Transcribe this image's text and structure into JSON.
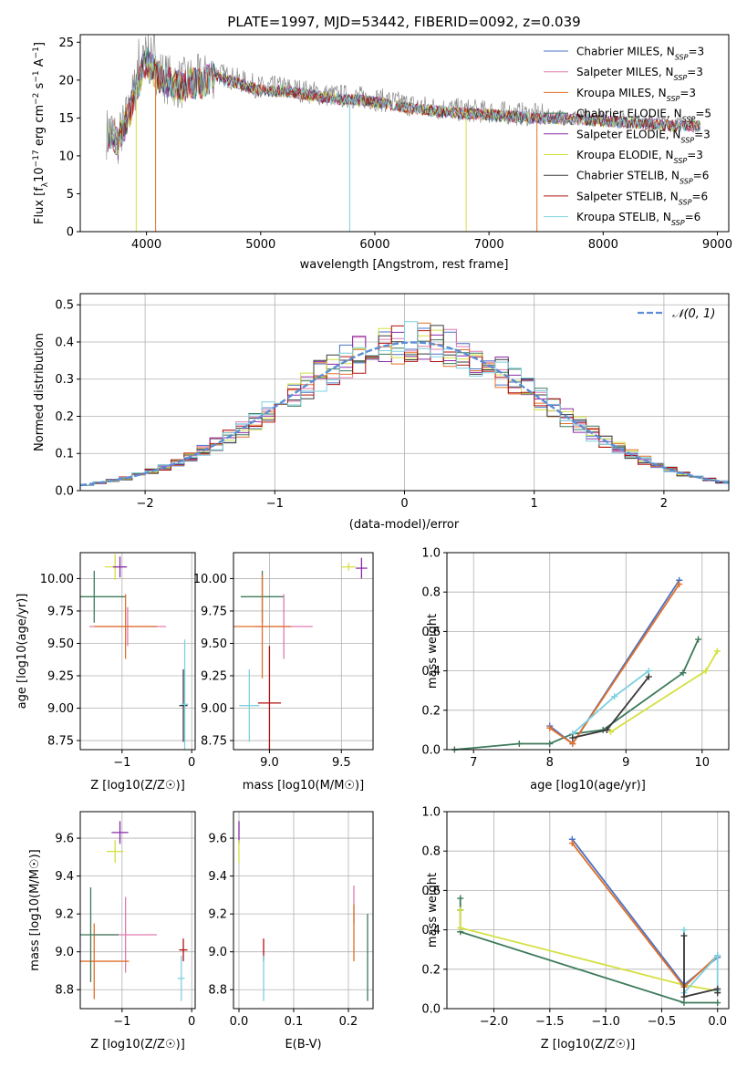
{
  "chart_data": [
    {
      "id": "spectrum",
      "type": "line",
      "title": "PLATE=1997, MJD=53442, FIBERID=0092, z=0.039",
      "xlabel": "wavelength [Angstrom, rest frame]",
      "ylabel": "Flux [f_λ 10⁻¹⁷ erg cm⁻² s⁻¹ A⁻¹]",
      "xlim": [
        3420,
        9100
      ],
      "ylim": [
        0,
        26
      ],
      "xticks": [
        4000,
        5000,
        6000,
        7000,
        8000,
        9000
      ],
      "yticks": [
        0,
        5,
        10,
        15,
        20,
        25
      ],
      "grid": false,
      "legend_position": "top-right",
      "data_points": [
        [
          3650,
          13
        ],
        [
          3700,
          13.5
        ],
        [
          3750,
          12
        ],
        [
          3800,
          14
        ],
        [
          3850,
          16
        ],
        [
          3900,
          19
        ],
        [
          3950,
          21
        ],
        [
          4000,
          23
        ],
        [
          4100,
          21
        ],
        [
          4200,
          20
        ],
        [
          4300,
          19.5
        ],
        [
          4400,
          20
        ],
        [
          4500,
          20
        ],
        [
          4600,
          21
        ],
        [
          4700,
          20.5
        ],
        [
          4800,
          20
        ],
        [
          4900,
          19.5
        ],
        [
          5000,
          19
        ],
        [
          5200,
          19
        ],
        [
          5400,
          18.5
        ],
        [
          5600,
          18
        ],
        [
          5800,
          17.8
        ],
        [
          6000,
          17.5
        ],
        [
          6200,
          17
        ],
        [
          6400,
          16.5
        ],
        [
          6600,
          16.2
        ],
        [
          6800,
          16
        ],
        [
          7000,
          15.8
        ],
        [
          7200,
          15.6
        ],
        [
          7400,
          15.4
        ],
        [
          7600,
          15.3
        ],
        [
          7800,
          15.2
        ],
        [
          8000,
          15
        ],
        [
          8200,
          14.8
        ],
        [
          8400,
          14.6
        ],
        [
          8600,
          14.4
        ],
        [
          8800,
          14.3
        ]
      ],
      "dips": [
        {
          "x": 3910,
          "series": "Kroupa ELODIE"
        },
        {
          "x": 4080,
          "series": "Kroupa MILES"
        },
        {
          "x": 5780,
          "series": "Kroupa STELIB"
        },
        {
          "x": 6800,
          "series": "Kroupa ELODIE"
        },
        {
          "x": 7420,
          "series": "Kroupa MILES"
        }
      ],
      "series": [
        {
          "name": "Chabrier MILES",
          "nssp": "3",
          "color": "#4a72c4"
        },
        {
          "name": "Salpeter MILES",
          "nssp": "3",
          "color": "#e07ab0"
        },
        {
          "name": "Kroupa MILES",
          "nssp": "3",
          "color": "#e0702a"
        },
        {
          "name": "Chabrier ELODIE",
          "nssp": "5",
          "color": "#3c7a5a"
        },
        {
          "name": "Salpeter ELODIE",
          "nssp": "3",
          "color": "#8a2aa8"
        },
        {
          "name": "Kroupa ELODIE",
          "nssp": "3",
          "color": "#d4e040"
        },
        {
          "name": "Chabrier STELIB",
          "nssp": "6",
          "color": "#3a3a3a"
        },
        {
          "name": "Salpeter STELIB",
          "nssp": "6",
          "color": "#b01010"
        },
        {
          "name": "Kroupa STELIB",
          "nssp": "6",
          "color": "#7ed0e0"
        }
      ]
    },
    {
      "id": "residuals",
      "type": "line",
      "xlabel": "(data-model)/error",
      "ylabel": "Normed distribution",
      "xlim": [
        -2.5,
        2.5
      ],
      "ylim": [
        0,
        0.53
      ],
      "xticks": [
        -2,
        -1,
        0,
        1,
        2
      ],
      "yticks": [
        0.0,
        0.1,
        0.2,
        0.3,
        0.4,
        0.5
      ],
      "grid": true,
      "legend_position": "top-right",
      "legend": "𝒩(0, 1)",
      "gaussian": {
        "mean": 0.07,
        "sigma": 1.0,
        "color": "#5b8dd6"
      }
    },
    {
      "id": "age-vs-Z",
      "type": "scatter",
      "xlabel": "Z [log10(Z/Z☉)]",
      "ylabel": "age  [log10(age/yr)]",
      "xlim": [
        -1.6,
        0.05
      ],
      "ylim": [
        8.68,
        10.2
      ],
      "xticks": [
        -1,
        0
      ],
      "yticks": [
        8.75,
        9.0,
        9.25,
        9.5,
        9.75,
        10.0
      ],
      "grid": true,
      "points": [
        {
          "x": -1.1,
          "y": 10.09,
          "ex": 0.15,
          "ey": 0.1,
          "color": "#d4e040"
        },
        {
          "x": -1.03,
          "y": 10.09,
          "ex": 0.1,
          "ey": 0.08,
          "color": "#8a2aa8"
        },
        {
          "x": -1.4,
          "y": 9.86,
          "ex": 0.45,
          "ey": 0.2,
          "color": "#3c7a5a"
        },
        {
          "x": -0.92,
          "y": 9.63,
          "ex": 0.55,
          "ey": 0.15,
          "color": "#e07ab0"
        },
        {
          "x": -0.95,
          "y": 9.63,
          "ex": 0.45,
          "ey": 0.25,
          "color": "#e0702a"
        },
        {
          "x": -0.12,
          "y": 9.02,
          "ex": 0.06,
          "ey": 0.28,
          "color": "#3a3a3a"
        },
        {
          "x": -0.1,
          "y": 9.03,
          "ex": 0.05,
          "ey": 0.5,
          "color": "#7ed0e0"
        }
      ]
    },
    {
      "id": "age-vs-mass",
      "type": "scatter",
      "xlabel": "mass [log10(M/M☉)]",
      "ylabel": "",
      "xlim": [
        8.75,
        9.72
      ],
      "ylim": [
        8.68,
        10.2
      ],
      "xticks": [
        9.0,
        9.5
      ],
      "yticks": [
        8.75,
        9.0,
        9.25,
        9.5,
        9.75,
        10.0
      ],
      "grid": true,
      "points": [
        {
          "x": 9.55,
          "y": 10.09,
          "ex": 0.05,
          "ey": 0.03,
          "color": "#d4e040"
        },
        {
          "x": 9.64,
          "y": 10.08,
          "ex": 0.04,
          "ey": 0.08,
          "color": "#8a2aa8"
        },
        {
          "x": 8.95,
          "y": 9.86,
          "ex": 0.15,
          "ey": 0.2,
          "color": "#3c7a5a"
        },
        {
          "x": 9.1,
          "y": 9.63,
          "ex": 0.2,
          "ey": 0.25,
          "color": "#e07ab0"
        },
        {
          "x": 8.95,
          "y": 9.63,
          "ex": 0.2,
          "ey": 0.4,
          "color": "#e0702a"
        },
        {
          "x": 9.0,
          "y": 9.04,
          "ex": 0.08,
          "ey": 0.44,
          "color": "#b01010"
        },
        {
          "x": 8.86,
          "y": 9.02,
          "ex": 0.07,
          "ey": 0.28,
          "color": "#7ed0e0"
        }
      ]
    },
    {
      "id": "massweight-vs-age",
      "type": "line",
      "xlabel": "age  [log10(age/yr)]",
      "ylabel": "mass weight",
      "xlim": [
        6.65,
        10.35
      ],
      "ylim": [
        0,
        1.0
      ],
      "xticks": [
        7,
        8,
        9,
        10
      ],
      "yticks": [
        0.0,
        0.2,
        0.4,
        0.6,
        0.8,
        1.0
      ],
      "grid": true,
      "series": [
        {
          "color": "#3c7a5a",
          "x": [
            6.75,
            7.6,
            8.0,
            8.3,
            8.7,
            9.75,
            9.95
          ],
          "y": [
            0.0,
            0.03,
            0.03,
            0.08,
            0.1,
            0.39,
            0.56
          ]
        },
        {
          "color": "#d4e040",
          "x": [
            8.8,
            10.05,
            10.2
          ],
          "y": [
            0.09,
            0.4,
            0.5
          ]
        },
        {
          "color": "#4a72c4",
          "x": [
            8.0,
            8.3,
            9.7
          ],
          "y": [
            0.12,
            0.03,
            0.86
          ]
        },
        {
          "color": "#e0702a",
          "x": [
            8.0,
            8.3,
            9.7
          ],
          "y": [
            0.11,
            0.03,
            0.84
          ]
        },
        {
          "color": "#7ed0e0",
          "x": [
            8.3,
            8.85,
            9.3
          ],
          "y": [
            0.08,
            0.27,
            0.4
          ]
        },
        {
          "color": "#3a3a3a",
          "x": [
            8.3,
            8.75,
            9.3
          ],
          "y": [
            0.06,
            0.1,
            0.37
          ]
        }
      ]
    },
    {
      "id": "mass-vs-Z",
      "type": "scatter",
      "xlabel": "Z [log10(Z/Z☉)]",
      "ylabel": "mass [log10(M/M☉)]",
      "xlim": [
        -1.6,
        0.05
      ],
      "ylim": [
        8.7,
        9.74
      ],
      "xticks": [
        -1,
        0
      ],
      "yticks": [
        8.8,
        9.0,
        9.2,
        9.4,
        9.6
      ],
      "grid": true,
      "points": [
        {
          "x": -1.03,
          "y": 9.63,
          "ex": 0.12,
          "ey": 0.06,
          "color": "#8a2aa8"
        },
        {
          "x": -1.1,
          "y": 9.53,
          "ex": 0.12,
          "ey": 0.06,
          "color": "#d4e040"
        },
        {
          "x": -0.95,
          "y": 9.09,
          "ex": 0.45,
          "ey": 0.2,
          "color": "#e07ab0"
        },
        {
          "x": -1.4,
          "y": 8.95,
          "ex": 0.5,
          "ey": 0.2,
          "color": "#e0702a"
        },
        {
          "x": -1.45,
          "y": 9.09,
          "ex": 0.4,
          "ey": 0.25,
          "color": "#3c7a5a"
        },
        {
          "x": -0.12,
          "y": 9.01,
          "ex": 0.06,
          "ey": 0.06,
          "color": "#b01010"
        },
        {
          "x": -0.15,
          "y": 8.86,
          "ex": 0.05,
          "ey": 0.12,
          "color": "#7ed0e0"
        }
      ]
    },
    {
      "id": "mass-vs-ebv",
      "type": "scatter",
      "xlabel": "E(B-V)",
      "ylabel": "",
      "xlim": [
        -0.01,
        0.245
      ],
      "ylim": [
        8.7,
        9.74
      ],
      "xticks": [
        0.0,
        0.1,
        0.2
      ],
      "yticks": [
        8.8,
        9.0,
        9.2,
        9.4,
        9.6
      ],
      "grid": true,
      "points": [
        {
          "x": 0.0,
          "y": 9.63,
          "ex": 0.0,
          "ey": 0.06,
          "color": "#8a2aa8"
        },
        {
          "x": 0.0,
          "y": 9.53,
          "ex": 0.0,
          "ey": 0.06,
          "color": "#d4e040"
        },
        {
          "x": 0.045,
          "y": 9.01,
          "ex": 0.0,
          "ey": 0.06,
          "color": "#b01010"
        },
        {
          "x": 0.045,
          "y": 8.86,
          "ex": 0.0,
          "ey": 0.12,
          "color": "#7ed0e0"
        },
        {
          "x": 0.21,
          "y": 9.25,
          "ex": 0.0,
          "ey": 0.1,
          "color": "#e07ab0"
        },
        {
          "x": 0.21,
          "y": 9.1,
          "ex": 0.0,
          "ey": 0.15,
          "color": "#e0702a"
        },
        {
          "x": 0.235,
          "y": 8.97,
          "ex": 0.0,
          "ey": 0.23,
          "color": "#3c7a5a"
        }
      ]
    },
    {
      "id": "massweight-vs-Z",
      "type": "line",
      "xlabel": "Z [log10(Z/Z☉)]",
      "ylabel": "mass weight",
      "xlim": [
        -2.42,
        0.1
      ],
      "ylim": [
        0,
        1.0
      ],
      "xticks": [
        -2.0,
        -1.5,
        -1.0,
        -0.5,
        0.0
      ],
      "yticks": [
        0.0,
        0.2,
        0.4,
        0.6,
        0.8,
        1.0
      ],
      "grid": true,
      "series": [
        {
          "color": "#3c7a5a",
          "x": [
            -2.3,
            -2.3,
            -2.3,
            -0.3,
            0.0
          ],
          "y": [
            0.56,
            0.5,
            0.39,
            0.03,
            0.03
          ]
        },
        {
          "color": "#d4e040",
          "x": [
            -2.3,
            -2.3,
            -0.3,
            0.0
          ],
          "y": [
            0.5,
            0.41,
            0.12,
            0.09
          ]
        },
        {
          "color": "#4a72c4",
          "x": [
            -1.3,
            -0.3,
            0.0
          ],
          "y": [
            0.86,
            0.12,
            0.26
          ]
        },
        {
          "color": "#e0702a",
          "x": [
            -1.3,
            -0.3,
            0.0
          ],
          "y": [
            0.84,
            0.11,
            0.27
          ]
        },
        {
          "color": "#7ed0e0",
          "x": [
            -0.3,
            -0.3,
            0.0,
            0.0
          ],
          "y": [
            0.4,
            0.08,
            0.27,
            0.09
          ]
        },
        {
          "color": "#3a3a3a",
          "x": [
            -0.3,
            -0.3,
            0.0,
            0.0
          ],
          "y": [
            0.37,
            0.06,
            0.1,
            0.08
          ]
        }
      ]
    }
  ]
}
